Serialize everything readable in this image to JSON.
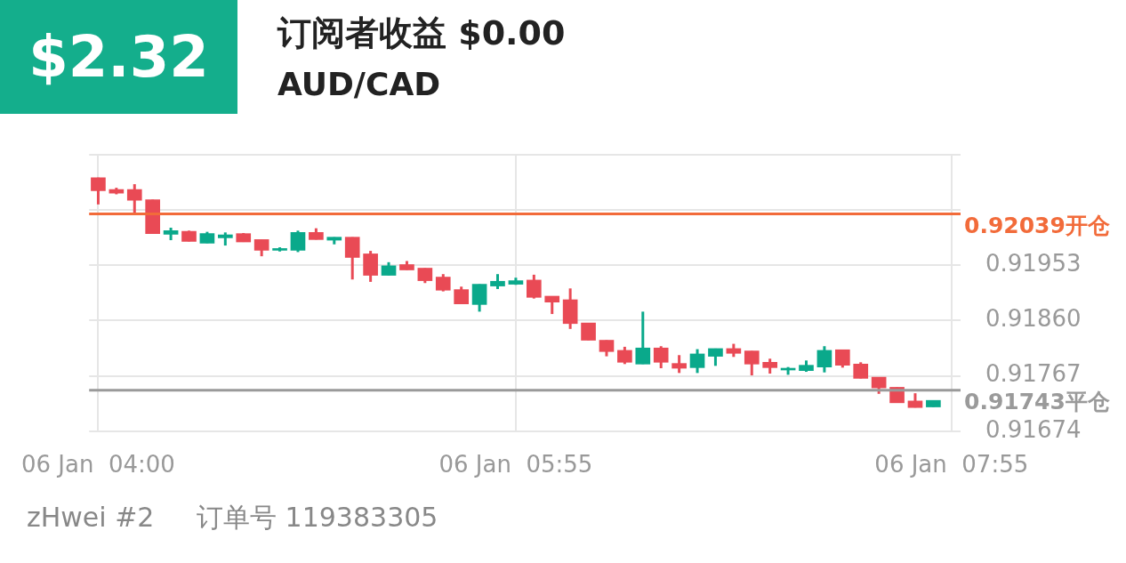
{
  "chart_data": {
    "type": "candlestick",
    "title": "订阅者收益 $0.00",
    "subtitle": "AUD/CAD",
    "annotations": [
      "$2.32",
      "zHwei #2     订单号 119383305"
    ],
    "categories": [
      "06 Jan  04:00",
      null,
      null,
      null,
      null,
      null,
      null,
      null,
      null,
      null,
      null,
      null,
      null,
      null,
      null,
      null,
      null,
      null,
      null,
      null,
      null,
      null,
      null,
      "06 Jan  05:55",
      null,
      null,
      null,
      null,
      null,
      null,
      null,
      null,
      null,
      null,
      null,
      null,
      null,
      null,
      null,
      null,
      null,
      null,
      null,
      null,
      null,
      null,
      null,
      "06 Jan  07:55"
    ],
    "ohlc": [
      [
        0.921,
        0.921,
        0.92055,
        0.92078
      ],
      [
        0.9208,
        0.92083,
        0.92072,
        0.92074
      ],
      [
        0.9208,
        0.92089,
        0.9204,
        0.92062
      ],
      [
        0.92063,
        0.92063,
        0.92006,
        0.92006
      ],
      [
        0.92005,
        0.92016,
        0.91995,
        0.92011
      ],
      [
        0.9201,
        0.92011,
        0.91993,
        0.91993
      ],
      [
        0.9199,
        0.92009,
        0.9199,
        0.92006
      ],
      [
        0.91999,
        0.92008,
        0.91986,
        0.92004
      ],
      [
        0.92006,
        0.92007,
        0.91992,
        0.91992
      ],
      [
        0.91996,
        0.91996,
        0.91968,
        0.91978
      ],
      [
        0.91978,
        0.91983,
        0.91976,
        0.91981
      ],
      [
        0.91978,
        0.92011,
        0.91975,
        0.92008
      ],
      [
        0.92008,
        0.92015,
        0.91996,
        0.91996
      ],
      [
        0.91995,
        0.92,
        0.91988,
        0.92
      ],
      [
        0.92,
        0.92,
        0.91929,
        0.91966
      ],
      [
        0.91972,
        0.91977,
        0.91925,
        0.91936
      ],
      [
        0.91936,
        0.91958,
        0.91936,
        0.91952
      ],
      [
        0.91954,
        0.9196,
        0.91945,
        0.91945
      ],
      [
        0.91948,
        0.91948,
        0.91923,
        0.91927
      ],
      [
        0.91933,
        0.91938,
        0.91909,
        0.91911
      ],
      [
        0.91912,
        0.91917,
        0.91888,
        0.91888
      ],
      [
        0.91887,
        0.91921,
        0.91875,
        0.91921
      ],
      [
        0.91918,
        0.91938,
        0.91913,
        0.91926
      ],
      [
        0.91921,
        0.91932,
        0.9192,
        0.91927
      ],
      [
        0.91928,
        0.91937,
        0.91897,
        0.91899
      ],
      [
        0.91901,
        0.91901,
        0.91871,
        0.91891
      ],
      [
        0.91895,
        0.91914,
        0.91846,
        0.91855
      ],
      [
        0.91856,
        0.91856,
        0.91827,
        0.91827
      ],
      [
        0.91827,
        0.91827,
        0.918,
        0.91808
      ],
      [
        0.9181,
        0.91816,
        0.91787,
        0.9179
      ],
      [
        0.91787,
        0.91875,
        0.91787,
        0.91814
      ],
      [
        0.91814,
        0.91817,
        0.9178,
        0.9179
      ],
      [
        0.91788,
        0.91802,
        0.91772,
        0.9178
      ],
      [
        0.91781,
        0.91812,
        0.91772,
        0.91804
      ],
      [
        0.918,
        0.91813,
        0.91784,
        0.91813
      ],
      [
        0.91813,
        0.91821,
        0.91799,
        0.91805
      ],
      [
        0.91809,
        0.91809,
        0.91768,
        0.91787
      ],
      [
        0.9179,
        0.91796,
        0.91771,
        0.91781
      ],
      [
        0.91777,
        0.91782,
        0.91769,
        0.9178
      ],
      [
        0.91776,
        0.91793,
        0.91774,
        0.91785
      ],
      [
        0.91782,
        0.91817,
        0.91773,
        0.9181
      ],
      [
        0.91811,
        0.91811,
        0.91781,
        0.91785
      ],
      [
        0.91787,
        0.9179,
        0.91763,
        0.91763
      ],
      [
        0.91765,
        0.91765,
        0.91737,
        0.91747
      ],
      [
        0.91748,
        0.91748,
        0.91722,
        0.91722
      ],
      [
        0.91725,
        0.91738,
        0.91714,
        0.91714
      ],
      [
        0.91715,
        0.91726,
        0.91715,
        0.91726
      ],
      null
    ],
    "colors": [
      "#e94a55",
      "#e94a55",
      "#e94a55",
      "#e94a55",
      "#0aa98b",
      "#e94a55",
      "#0aa98b",
      "#0aa98b",
      "#e94a55",
      "#e94a55",
      "#0aa98b",
      "#0aa98b",
      "#e94a55",
      "#0aa98b",
      "#e94a55",
      "#e94a55",
      "#0aa98b",
      "#e94a55",
      "#e94a55",
      "#e94a55",
      "#e94a55",
      "#0aa98b",
      "#0aa98b",
      "#0aa98b",
      "#e94a55",
      "#e94a55",
      "#e94a55",
      "#e94a55",
      "#e94a55",
      "#e94a55",
      "#0aa98b",
      "#e94a55",
      "#e94a55",
      "#0aa98b",
      "#0aa98b",
      "#e94a55",
      "#e94a55",
      "#e94a55",
      "#0aa98b",
      "#0aa98b",
      "#0aa98b",
      "#e94a55",
      "#e94a55",
      "#e94a55",
      "#e94a55",
      "#e94a55",
      "#0aa98b",
      null
    ],
    "ylim": [
      0.91674,
      0.92139
    ],
    "yticks": [
      {
        "value": 0.91674,
        "label": "0.91674"
      },
      {
        "value": 0.91767,
        "label": "0.91767"
      },
      {
        "value": 0.9186,
        "label": "0.91860"
      },
      {
        "value": 0.91953,
        "label": "0.91953"
      },
      {
        "value": 0.92046,
        "label": null
      },
      {
        "value": 0.92139,
        "label": null
      }
    ],
    "ref_lines": [
      {
        "axis": "y",
        "value": 0.92039,
        "label": "0.92039开仓",
        "color": "#f26b3a"
      },
      {
        "axis": "y",
        "value": 0.91743,
        "label": "0.91743平仓",
        "color": "#9a9a9a"
      }
    ],
    "grid": true,
    "legend": false
  }
}
